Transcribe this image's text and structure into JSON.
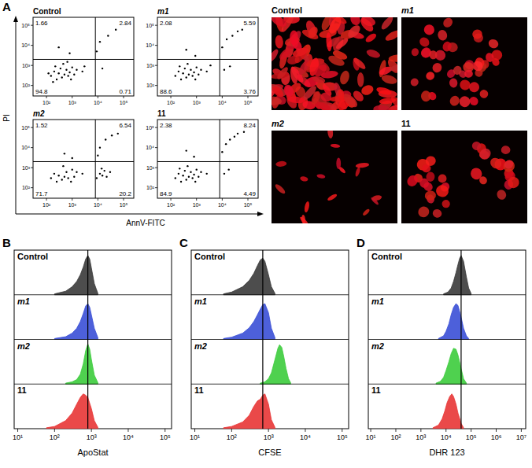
{
  "chart_data": [
    {
      "type": "scatter",
      "panel": "A",
      "x_label": "AnnV-FITC",
      "y_label": "PI",
      "log": true,
      "color": "#000000",
      "marker": "dot",
      "xlim": [
        30,
        250000
      ],
      "ylim": [
        30,
        250000
      ],
      "xticks": [
        {
          "value": 100,
          "label": "10²"
        },
        {
          "value": 1000,
          "label": "10³"
        },
        {
          "value": 10000,
          "label": "10⁴"
        },
        {
          "value": 100000,
          "label": "10⁵"
        }
      ],
      "yticks": [
        {
          "value": 100,
          "label": "10²"
        },
        {
          "value": 1000,
          "label": "10³"
        },
        {
          "value": 10000,
          "label": "10⁴"
        },
        {
          "value": 100000,
          "label": "10⁵"
        }
      ],
      "gates": {
        "x": 8000,
        "y": 2000
      },
      "plots": [
        {
          "title": "Control",
          "quadrants": {
            "upper_left": 1.66,
            "upper_right": 2.84,
            "lower_left": 94.8,
            "lower_right": 0.71
          },
          "x": [
            150,
            200,
            250,
            300,
            350,
            400,
            500,
            600,
            700,
            800,
            1000,
            1200,
            180,
            220,
            450,
            900,
            1500,
            120,
            650,
            2500,
            3000,
            12000,
            25000,
            50000,
            9000,
            300,
            800,
            15000
          ],
          "y": [
            300,
            500,
            200,
            400,
            700,
            250,
            350,
            600,
            300,
            450,
            800,
            350,
            150,
            900,
            1200,
            200,
            600,
            400,
            1500,
            500,
            900,
            15000,
            30000,
            60000,
            5000,
            8000,
            4000,
            700
          ]
        },
        {
          "title": "m1",
          "quadrants": {
            "upper_left": 2.08,
            "upper_right": 5.59,
            "lower_left": 88.6,
            "lower_right": 3.76
          },
          "x": [
            150,
            200,
            250,
            300,
            350,
            400,
            500,
            600,
            700,
            800,
            1000,
            1200,
            220,
            450,
            900,
            1500,
            2500,
            3500,
            10000,
            15000,
            25000,
            40000,
            60000,
            400,
            900,
            12000,
            20000
          ],
          "y": [
            300,
            500,
            200,
            400,
            700,
            250,
            350,
            600,
            300,
            450,
            800,
            350,
            900,
            1200,
            200,
            600,
            500,
            1000,
            8000,
            20000,
            30000,
            50000,
            60000,
            6000,
            3000,
            600,
            900
          ]
        },
        {
          "title": "m2",
          "quadrants": {
            "upper_left": 1.52,
            "upper_right": 6.54,
            "lower_left": 71.7,
            "lower_right": 20.2
          },
          "x": [
            150,
            200,
            250,
            300,
            400,
            500,
            600,
            700,
            1000,
            1200,
            450,
            900,
            1500,
            2500,
            9000,
            12000,
            15000,
            18000,
            22000,
            30000,
            14000,
            12000,
            20000,
            35000,
            60000,
            10000,
            500,
            1000
          ],
          "y": [
            300,
            500,
            200,
            400,
            250,
            350,
            600,
            300,
            800,
            350,
            1200,
            200,
            600,
            500,
            300,
            500,
            400,
            700,
            350,
            600,
            900,
            10000,
            25000,
            40000,
            50000,
            4000,
            5000,
            3000
          ]
        },
        {
          "title": "11",
          "quadrants": {
            "upper_left": 2.38,
            "upper_right": 8.24,
            "lower_left": 84.9,
            "lower_right": 4.49
          },
          "x": [
            150,
            200,
            250,
            300,
            350,
            400,
            500,
            600,
            700,
            800,
            1000,
            1200,
            220,
            450,
            900,
            1500,
            2500,
            10000,
            14000,
            20000,
            30000,
            70000,
            40000,
            400,
            800,
            12000,
            18000
          ],
          "y": [
            300,
            500,
            200,
            400,
            700,
            250,
            350,
            600,
            300,
            450,
            800,
            350,
            900,
            1200,
            200,
            600,
            500,
            6000,
            15000,
            25000,
            35000,
            60000,
            50000,
            7000,
            3500,
            500,
            800
          ]
        }
      ]
    },
    {
      "type": "area",
      "panel": "B",
      "x_label": "ApoStat",
      "log": "x",
      "tick_labels": "x",
      "xlim": [
        8,
        150000
      ],
      "ylim": [
        0,
        100
      ],
      "xticks": [
        {
          "value": 10,
          "label": "10¹"
        },
        {
          "value": 100,
          "label": "10²"
        },
        {
          "value": 1000,
          "label": "10³"
        },
        {
          "value": 10000,
          "label": "10⁴"
        },
        {
          "value": 100000,
          "label": "10⁵"
        }
      ],
      "reference_line": 800,
      "series": [
        {
          "name": "Control",
          "color": "#3a3a3a",
          "x": [
            100,
            200,
            300,
            400,
            500,
            600,
            700,
            800,
            900,
            1000,
            1200,
            1500
          ],
          "values": [
            2,
            8,
            18,
            30,
            45,
            62,
            80,
            88,
            80,
            60,
            25,
            3
          ]
        },
        {
          "name": "m1",
          "color": "#3a4fd6",
          "x": [
            100,
            200,
            300,
            400,
            500,
            600,
            700,
            800,
            900,
            1000,
            1200,
            1500
          ],
          "values": [
            2,
            6,
            14,
            25,
            40,
            58,
            75,
            80,
            72,
            55,
            25,
            4
          ]
        },
        {
          "name": "m2",
          "color": "#3ccc3c",
          "x": [
            200,
            300,
            400,
            500,
            600,
            700,
            800,
            900,
            1000,
            1200,
            1500
          ],
          "values": [
            2,
            5,
            10,
            22,
            45,
            75,
            90,
            78,
            55,
            20,
            3
          ]
        },
        {
          "name": "11",
          "color": "#e83535",
          "x": [
            60,
            100,
            200,
            300,
            400,
            500,
            600,
            700,
            800,
            1000,
            1200,
            1500
          ],
          "values": [
            2,
            5,
            18,
            35,
            55,
            70,
            78,
            75,
            70,
            45,
            18,
            3
          ]
        }
      ]
    },
    {
      "type": "area",
      "panel": "C",
      "x_label": "CFSE",
      "log": "x",
      "tick_labels": "x",
      "xlim": [
        8,
        150000
      ],
      "ylim": [
        0,
        100
      ],
      "xticks": [
        {
          "value": 10,
          "label": "10¹"
        },
        {
          "value": 100,
          "label": "10²"
        },
        {
          "value": 1000,
          "label": "10³"
        },
        {
          "value": 10000,
          "label": "10⁴"
        },
        {
          "value": 100000,
          "label": "10⁵"
        }
      ],
      "reference_line": 700,
      "series": [
        {
          "name": "Control",
          "color": "#3a3a3a",
          "x": [
            60,
            100,
            200,
            300,
            400,
            500,
            600,
            700,
            800,
            1000,
            1200,
            1500
          ],
          "values": [
            2,
            6,
            18,
            32,
            48,
            65,
            78,
            82,
            75,
            45,
            18,
            3
          ]
        },
        {
          "name": "m1",
          "color": "#3a4fd6",
          "x": [
            60,
            100,
            200,
            300,
            400,
            500,
            600,
            700,
            800,
            1000,
            1200,
            1500
          ],
          "values": [
            2,
            5,
            14,
            26,
            40,
            55,
            68,
            78,
            80,
            60,
            25,
            4
          ]
        },
        {
          "name": "m2",
          "color": "#3ccc3c",
          "x": [
            600,
            800,
            1000,
            1200,
            1500,
            1800,
            2000,
            2300,
            2600,
            3000,
            3500,
            4000
          ],
          "values": [
            2,
            5,
            12,
            25,
            55,
            80,
            88,
            82,
            62,
            35,
            12,
            3
          ]
        },
        {
          "name": "11",
          "color": "#e83535",
          "x": [
            60,
            100,
            200,
            300,
            400,
            500,
            600,
            700,
            800,
            1000,
            1200,
            1500
          ],
          "values": [
            2,
            5,
            15,
            30,
            50,
            62,
            66,
            75,
            78,
            55,
            20,
            3
          ]
        }
      ]
    },
    {
      "type": "area",
      "panel": "D",
      "x_label": "DHR 123",
      "log": "x",
      "tick_labels": "x",
      "xlim": [
        8,
        15000000
      ],
      "ylim": [
        0,
        100
      ],
      "xticks": [
        {
          "value": 10,
          "label": "10¹"
        },
        {
          "value": 100,
          "label": "10²"
        },
        {
          "value": 1000,
          "label": "10³"
        },
        {
          "value": 10000,
          "label": "10⁴"
        },
        {
          "value": 100000,
          "label": "10⁵"
        },
        {
          "value": 1000000,
          "label": "10⁶"
        },
        {
          "value": 10000000,
          "label": "10⁷"
        }
      ],
      "reference_line": 40000,
      "series": [
        {
          "name": "Control",
          "color": "#3a3a3a",
          "x": [
            8000,
            12000,
            16000,
            20000,
            25000,
            30000,
            35000,
            40000,
            50000,
            65000,
            80000,
            100000
          ],
          "values": [
            2,
            6,
            15,
            30,
            50,
            68,
            82,
            88,
            75,
            40,
            15,
            3
          ]
        },
        {
          "name": "m1",
          "color": "#3a4fd6",
          "x": [
            5000,
            8000,
            10000,
            13000,
            16000,
            20000,
            25000,
            30000,
            40000,
            50000,
            65000,
            80000
          ],
          "values": [
            2,
            8,
            18,
            35,
            55,
            72,
            80,
            76,
            50,
            25,
            8,
            2
          ]
        },
        {
          "name": "m2",
          "color": "#3ccc3c",
          "x": [
            4000,
            6000,
            8000,
            10000,
            13000,
            16000,
            20000,
            25000,
            30000,
            40000,
            50000,
            65000
          ],
          "values": [
            2,
            6,
            15,
            30,
            50,
            68,
            80,
            78,
            65,
            35,
            12,
            2
          ]
        },
        {
          "name": "11",
          "color": "#e83535",
          "x": [
            3000,
            5000,
            7000,
            9000,
            11000,
            14000,
            17000,
            20000,
            25000,
            30000,
            40000,
            50000
          ],
          "values": [
            2,
            8,
            22,
            40,
            58,
            72,
            78,
            72,
            55,
            35,
            12,
            2
          ]
        }
      ]
    }
  ],
  "images": [
    {
      "label": "Control"
    },
    {
      "label": "m1"
    },
    {
      "label": "m2"
    },
    {
      "label": "11"
    }
  ]
}
